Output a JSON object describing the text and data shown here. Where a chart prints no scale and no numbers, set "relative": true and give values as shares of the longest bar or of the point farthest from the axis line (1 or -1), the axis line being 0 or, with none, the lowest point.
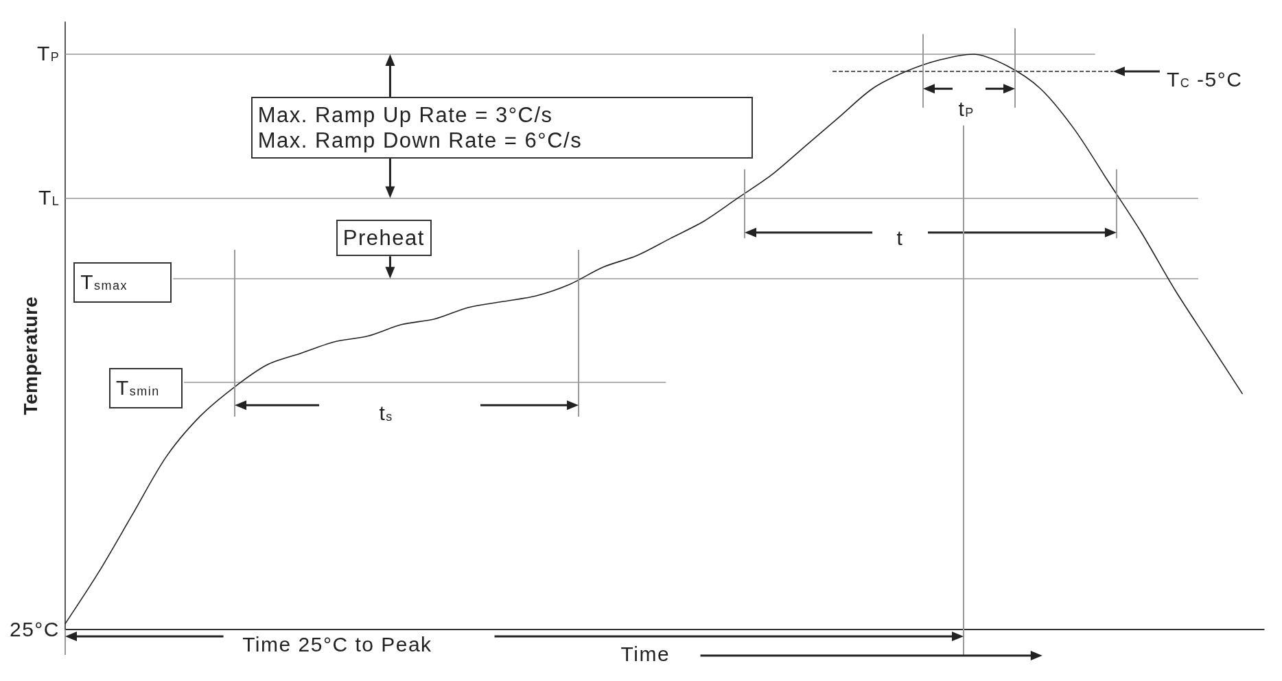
{
  "chart_data": {
    "type": "line",
    "relative": true,
    "xlabel": "Time",
    "ylabel": "Temperature",
    "categories": [
      null,
      null,
      null,
      null,
      null,
      null,
      null,
      null,
      null,
      null,
      null,
      null,
      null,
      null,
      null,
      null,
      null,
      null,
      null,
      null,
      null,
      null,
      null,
      null,
      null,
      null,
      null,
      null,
      null,
      null,
      null,
      null,
      null,
      null,
      null,
      null
    ],
    "values": [
      0.01,
      0.1,
      0.2,
      0.3,
      0.37,
      0.42,
      0.46,
      0.48,
      0.5,
      0.51,
      0.53,
      0.54,
      0.56,
      0.57,
      0.58,
      0.6,
      0.63,
      0.65,
      0.68,
      0.71,
      0.75,
      0.79,
      0.84,
      0.89,
      0.94,
      0.97,
      0.99,
      1,
      0.98,
      0.94,
      0.87,
      0.78,
      0.69,
      0.59,
      0.5,
      0.41
    ],
    "color": "#222222",
    "ref_lines": [
      {
        "axis": "y",
        "value": 1,
        "label": "T$_{P}$",
        "color": "#999999"
      },
      {
        "axis": "y",
        "value": 0.97,
        "label": "T$_{C}$ -5°C",
        "color": "#222222",
        "line_style": "dashed"
      },
      {
        "axis": "y",
        "value": 0.75,
        "label": "T$_{L}$",
        "color": "#999999"
      },
      {
        "axis": "y",
        "value": 0.61,
        "label": "T$_{smax}$",
        "color": "#999999"
      },
      {
        "axis": "y",
        "value": 0.43,
        "label": "T$_{smin}$",
        "color": "#999999"
      },
      {
        "axis": "y",
        "value": 0,
        "label": "25°C",
        "color": "#222222"
      }
    ],
    "annotations": [
      "Max. Ramp Up Rate = 3°C/s",
      "Max. Ramp Down Rate = 6°C/s",
      "Preheat",
      "t$_{s}$",
      "t",
      "t$_{P}$",
      "Time 25°C to Peak"
    ]
  }
}
